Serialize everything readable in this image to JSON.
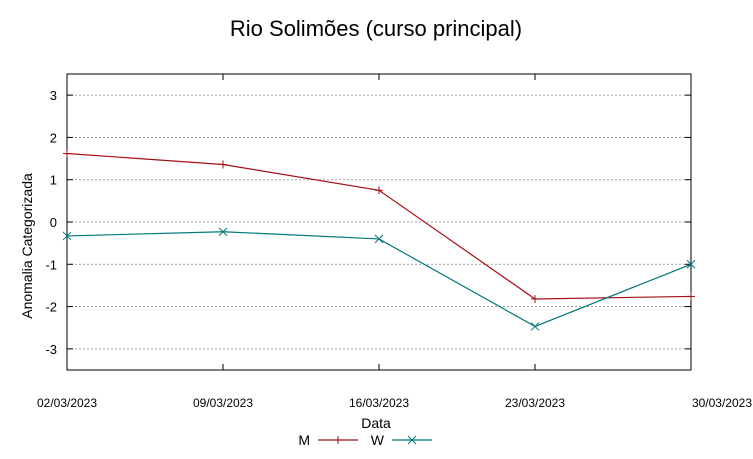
{
  "chart_data": {
    "type": "line",
    "title": "Rio Solimões (curso principal)",
    "xlabel": "Data",
    "ylabel": "Anomalia Categorizada",
    "categories": [
      "02/03/2023",
      "09/03/2023",
      "16/03/2023",
      "23/03/2023",
      "30/03/2023"
    ],
    "ylim": [
      -3.5,
      3.5
    ],
    "yticks": [
      -3,
      -2,
      -1,
      0,
      1,
      2,
      3
    ],
    "ytick_labels": [
      "-3",
      "-2",
      "-1",
      "0",
      "1",
      "2",
      "3"
    ],
    "grid": true,
    "legend_position": "bottom",
    "series": [
      {
        "name": "M",
        "color": "#a50f15",
        "marker": "plus",
        "values": [
          1.62,
          1.36,
          0.75,
          -1.82,
          -1.76
        ]
      },
      {
        "name": "W",
        "color": "#00787a",
        "marker": "cross",
        "values": [
          -0.33,
          -0.23,
          -0.4,
          -2.47,
          -1.0
        ]
      }
    ]
  }
}
